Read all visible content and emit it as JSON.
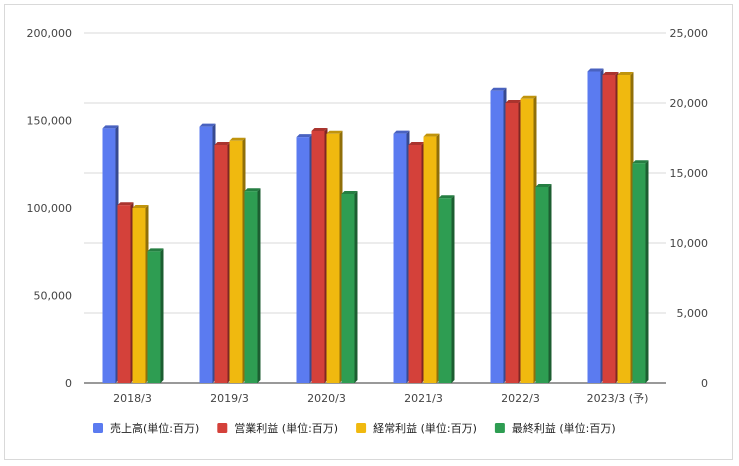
{
  "chart_data": {
    "type": "bar",
    "categories": [
      "2018/3",
      "2019/3",
      "2020/3",
      "2021/3",
      "2022/3",
      "2023/3 (予)"
    ],
    "series": [
      {
        "name": "売上高(単位:百万)",
        "axis": "left",
        "color": "#5b7bf0",
        "values": [
          145500,
          146500,
          140500,
          142500,
          167000,
          178000
        ]
      },
      {
        "name": "営業利益 (単位:百万)",
        "axis": "right",
        "color": "#d4413a",
        "values": [
          12700,
          17000,
          18000,
          17000,
          20000,
          22000
        ]
      },
      {
        "name": "経常利益 (単位:百万)",
        "axis": "right",
        "color": "#f0b90f",
        "values": [
          12500,
          17300,
          17800,
          17600,
          20300,
          22000
        ]
      },
      {
        "name": "最終利益 (単位:百万)",
        "axis": "right",
        "color": "#2e9d52",
        "values": [
          9400,
          13700,
          13500,
          13200,
          14000,
          15700
        ]
      }
    ],
    "y_left": {
      "min": 0,
      "max": 200000,
      "ticks": [
        "0",
        "50,000",
        "100,000",
        "150,000",
        "200,000"
      ],
      "tick_values": [
        0,
        50000,
        100000,
        150000,
        200000
      ]
    },
    "y_right": {
      "min": 0,
      "max": 25000,
      "ticks": [
        "0",
        "5,000",
        "10,000",
        "15,000",
        "20,000",
        "25,000"
      ],
      "tick_values": [
        0,
        5000,
        10000,
        15000,
        20000,
        25000
      ]
    },
    "grid": true,
    "legend_position": "bottom",
    "style": "3d-bars"
  }
}
